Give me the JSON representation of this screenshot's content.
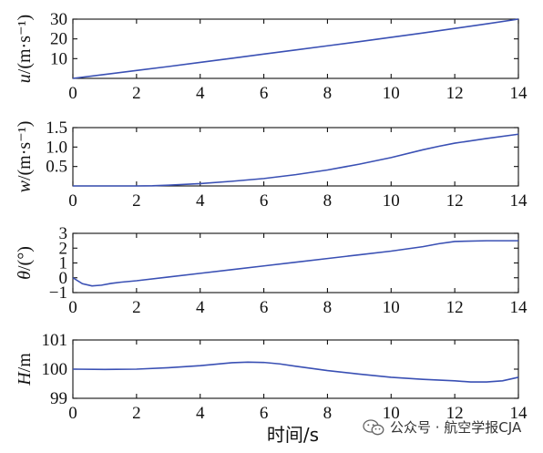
{
  "chart_data": [
    {
      "type": "line",
      "ylabel": "u/(m·s⁻¹)",
      "ylabel_var": "u",
      "ylabel_unit": "/(m·s⁻¹)",
      "xlim": [
        0,
        14
      ],
      "ylim": [
        0,
        30
      ],
      "xticks": [
        0,
        2,
        4,
        6,
        8,
        10,
        12,
        14
      ],
      "yticks": [
        10,
        20,
        30
      ],
      "series": [
        {
          "color": "#3a50b4",
          "x": [
            0,
            1,
            2,
            3,
            4,
            5,
            6,
            7,
            8,
            9,
            10,
            11,
            12,
            13,
            14
          ],
          "y": [
            0,
            2.0,
            4.0,
            6.0,
            8.1,
            10.2,
            12.3,
            14.4,
            16.5,
            18.6,
            20.8,
            23.0,
            25.3,
            27.6,
            30.0
          ]
        }
      ]
    },
    {
      "type": "line",
      "ylabel": "w/(m·s⁻¹)",
      "ylabel_var": "w",
      "ylabel_unit": "/(m·s⁻¹)",
      "xlim": [
        0,
        14
      ],
      "ylim": [
        0,
        1.5
      ],
      "xticks": [
        0,
        2,
        4,
        6,
        8,
        10,
        12,
        14
      ],
      "yticks": [
        0.5,
        1.0,
        1.5
      ],
      "ytick_labels": [
        "0.5",
        "1.0",
        "1.5"
      ],
      "series": [
        {
          "color": "#3a50b4",
          "x": [
            0,
            2.0,
            2.5,
            3,
            4,
            5,
            6,
            7,
            8,
            9,
            10,
            11,
            11.5,
            12,
            13,
            14
          ],
          "y": [
            0,
            0,
            0.005,
            0.02,
            0.06,
            0.12,
            0.19,
            0.29,
            0.41,
            0.56,
            0.73,
            0.93,
            1.02,
            1.1,
            1.22,
            1.33
          ]
        }
      ]
    },
    {
      "type": "line",
      "ylabel": "θ/(°)",
      "ylabel_var": "θ",
      "ylabel_unit": "/(°)",
      "xlim": [
        0,
        14
      ],
      "ylim": [
        -1,
        3
      ],
      "xticks": [
        0,
        2,
        4,
        6,
        8,
        10,
        12,
        14
      ],
      "yticks": [
        -1,
        0,
        1,
        2,
        3
      ],
      "ytick_labels": [
        "−1",
        "0",
        "1",
        "2",
        "3"
      ],
      "series": [
        {
          "color": "#3a50b4",
          "x": [
            0,
            0.3,
            0.6,
            0.9,
            1.2,
            1.5,
            2,
            3,
            4,
            5,
            6,
            7,
            8,
            9,
            10,
            11,
            11.5,
            12,
            13,
            14
          ],
          "y": [
            0,
            -0.4,
            -0.55,
            -0.5,
            -0.38,
            -0.3,
            -0.2,
            0.05,
            0.3,
            0.55,
            0.8,
            1.05,
            1.3,
            1.55,
            1.8,
            2.1,
            2.3,
            2.45,
            2.5,
            2.5
          ]
        }
      ]
    },
    {
      "type": "line",
      "ylabel": "H/m",
      "ylabel_var": "H",
      "ylabel_unit": "/m",
      "xlim": [
        0,
        14
      ],
      "ylim": [
        99,
        101
      ],
      "xticks": [
        0,
        2,
        4,
        6,
        8,
        10,
        12,
        14
      ],
      "yticks": [
        99,
        100,
        101
      ],
      "xlabel": "时间/s",
      "series": [
        {
          "color": "#3a50b4",
          "x": [
            0,
            1,
            2,
            3,
            4,
            4.5,
            5,
            5.5,
            6,
            6.5,
            7,
            8,
            9,
            10,
            11,
            12,
            12.5,
            13,
            13.5,
            14
          ],
          "y": [
            100,
            99.99,
            100,
            100.05,
            100.12,
            100.17,
            100.22,
            100.24,
            100.23,
            100.18,
            100.1,
            99.95,
            99.83,
            99.72,
            99.65,
            99.6,
            99.56,
            99.56,
            99.6,
            99.72
          ]
        }
      ]
    }
  ],
  "watermark": {
    "text": "公众号 · 航空学报CJA",
    "icon": "wechat-icon"
  }
}
